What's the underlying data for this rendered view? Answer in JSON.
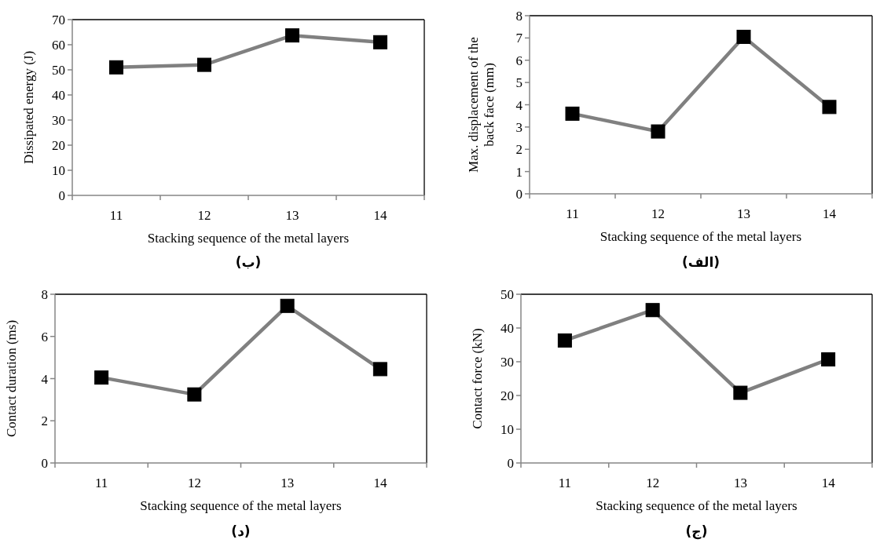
{
  "chart_data": [
    {
      "type": "line",
      "xlabel": "Stacking sequence of the metal layers",
      "ylabel": "Dissipated energy (J)",
      "categories": [
        "11",
        "12",
        "13",
        "14"
      ],
      "series": [
        {
          "color": "#808080",
          "values": [
            51,
            52,
            63.7,
            61
          ]
        }
      ],
      "ylim": [
        0,
        70
      ],
      "yticks": [
        0,
        10,
        20,
        30,
        40,
        50,
        60,
        70
      ],
      "marker": "square",
      "line_style": "solid",
      "annotations": [
        "(ب)"
      ]
    },
    {
      "type": "line",
      "xlabel": "Stacking sequence of the metal layers",
      "ylabel": "Max. displacement of the back face (mm)",
      "categories": [
        "11",
        "12",
        "13",
        "14"
      ],
      "series": [
        {
          "color": "#808080",
          "values": [
            3.6,
            2.8,
            7.05,
            3.9
          ]
        }
      ],
      "ylim": [
        0,
        8
      ],
      "yticks": [
        0,
        1,
        2,
        3,
        4,
        5,
        6,
        7,
        8
      ],
      "marker": "square",
      "line_style": "solid",
      "annotations": [
        "(الف)"
      ]
    },
    {
      "type": "line",
      "xlabel": "Stacking sequence of the metal layers",
      "ylabel": "Contact duration (ms)",
      "categories": [
        "11",
        "12",
        "13",
        "14"
      ],
      "series": [
        {
          "color": "#808080",
          "values": [
            4.05,
            3.25,
            7.45,
            4.45
          ]
        }
      ],
      "ylim": [
        0,
        8
      ],
      "yticks": [
        0,
        2,
        4,
        6,
        8
      ],
      "marker": "square",
      "line_style": "solid",
      "annotations": [
        "(د)"
      ]
    },
    {
      "type": "line",
      "xlabel": "Stacking sequence of the metal layers",
      "ylabel": "Contact force (kN)",
      "categories": [
        "11",
        "12",
        "13",
        "14"
      ],
      "series": [
        {
          "color": "#808080",
          "values": [
            36.3,
            45.3,
            20.8,
            30.7
          ]
        }
      ],
      "ylim": [
        0,
        50
      ],
      "yticks": [
        0,
        10,
        20,
        30,
        40,
        50
      ],
      "marker": "square",
      "line_style": "solid",
      "annotations": [
        "(ج)"
      ]
    }
  ]
}
